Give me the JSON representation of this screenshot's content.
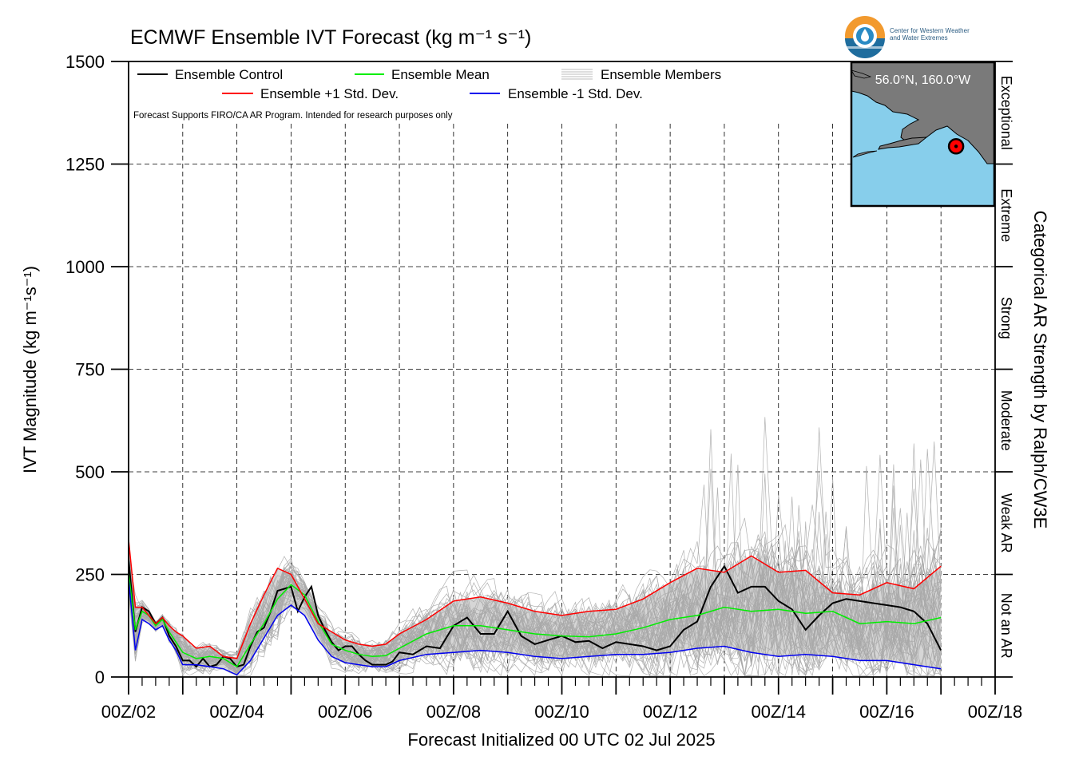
{
  "chart_data": {
    "type": "line",
    "title": "ECMWF Ensemble IVT Forecast (kg m⁻¹ s⁻¹)",
    "xlabel": "Forecast Initialized 00 UTC 02 Jul 2025",
    "ylabel": "IVT Magnitude (kg m⁻¹s⁻¹)",
    "right_label": "Categorical AR Strength by Ralph/CW3E",
    "ylim": [
      0,
      1500
    ],
    "xlim_days": [
      0,
      16
    ],
    "yticks": [
      0,
      250,
      500,
      750,
      1000,
      1250,
      1500
    ],
    "xtick_labels": [
      "00Z/02",
      "00Z/04",
      "00Z/06",
      "00Z/08",
      "00Z/10",
      "00Z/12",
      "00Z/14",
      "00Z/16",
      "00Z/18"
    ],
    "categories": [
      {
        "label": "Not an AR",
        "from": 0,
        "to": 250
      },
      {
        "label": "Weak AR",
        "from": 250,
        "to": 500
      },
      {
        "label": "Moderate",
        "from": 500,
        "to": 750
      },
      {
        "label": "Strong",
        "from": 750,
        "to": 1000
      },
      {
        "label": "Extreme",
        "from": 1000,
        "to": 1250
      },
      {
        "label": "Exceptional",
        "from": 1250,
        "to": 1500
      }
    ],
    "legend": {
      "control": "Ensemble Control",
      "mean": "Ensemble Mean",
      "members": "Ensemble Members",
      "plus_sd": "Ensemble +1 Std. Dev.",
      "minus_sd": "Ensemble -1 Std. Dev.",
      "note": "Forecast Supports FIRO/CA AR Program. Intended for research purposes only"
    },
    "grid": true,
    "legend_position": "top-left",
    "inset": {
      "label": "56.0°N, 160.0°W",
      "lat": 56.0,
      "lon": -160.0
    },
    "series": [
      {
        "name": "Ensemble Control",
        "color": "#000000",
        "x": [
          0,
          0.125,
          0.25,
          0.375,
          0.5,
          0.625,
          0.75,
          0.875,
          1,
          1.125,
          1.25,
          1.375,
          1.5,
          1.625,
          1.75,
          1.875,
          2,
          2.125,
          2.25,
          2.375,
          2.5,
          2.625,
          2.75,
          2.875,
          3,
          3.125,
          3.25,
          3.375,
          3.5,
          3.625,
          3.75,
          3.875,
          4,
          4.125,
          4.25,
          4.375,
          4.5,
          4.625,
          4.75,
          4.875,
          5,
          5.25,
          5.5,
          5.75,
          6,
          6.25,
          6.5,
          6.75,
          7,
          7.25,
          7.5,
          7.75,
          8,
          8.25,
          8.5,
          8.75,
          9,
          9.25,
          9.5,
          9.75,
          10,
          10.25,
          10.5,
          10.75,
          11,
          11.25,
          11.5,
          11.75,
          12,
          12.25,
          12.5,
          12.75,
          13,
          13.25,
          13.5,
          13.75,
          14,
          14.25,
          14.5,
          14.75,
          15
        ],
        "values": [
          285,
          110,
          170,
          160,
          130,
          145,
          100,
          75,
          40,
          40,
          25,
          45,
          25,
          30,
          50,
          45,
          25,
          30,
          75,
          110,
          120,
          160,
          210,
          215,
          220,
          160,
          195,
          220,
          150,
          115,
          85,
          65,
          75,
          75,
          55,
          40,
          30,
          30,
          30,
          38,
          60,
          55,
          75,
          70,
          125,
          145,
          105,
          105,
          160,
          100,
          80,
          90,
          100,
          85,
          88,
          70,
          85,
          80,
          75,
          65,
          75,
          115,
          135,
          220,
          270,
          205,
          220,
          220,
          185,
          165,
          115,
          150,
          180,
          190,
          185,
          180,
          175,
          170,
          160,
          130,
          65
        ]
      },
      {
        "name": "Ensemble Mean",
        "color": "#00ee00",
        "x": [
          0,
          0.125,
          0.25,
          0.375,
          0.5,
          0.625,
          0.75,
          0.875,
          1,
          1.25,
          1.5,
          1.75,
          2,
          2.25,
          2.5,
          2.75,
          3,
          3.25,
          3.5,
          3.75,
          4,
          4.25,
          4.5,
          4.75,
          5,
          5.5,
          6,
          6.5,
          7,
          7.5,
          8,
          8.5,
          9,
          9.5,
          10,
          10.5,
          11,
          11.5,
          12,
          12.5,
          13,
          13.5,
          14,
          14.5,
          15
        ],
        "values": [
          255,
          115,
          160,
          150,
          125,
          140,
          110,
          85,
          60,
          45,
          50,
          45,
          25,
          80,
          130,
          190,
          225,
          200,
          135,
          80,
          65,
          55,
          50,
          52,
          70,
          105,
          125,
          125,
          115,
          105,
          100,
          98,
          105,
          120,
          140,
          150,
          170,
          160,
          165,
          155,
          160,
          130,
          135,
          130,
          145
        ]
      },
      {
        "name": "Ensemble +1 Std. Dev.",
        "color": "#ff0000",
        "x": [
          0,
          0.125,
          0.25,
          0.375,
          0.5,
          0.625,
          0.75,
          0.875,
          1,
          1.25,
          1.5,
          1.75,
          2,
          2.25,
          2.5,
          2.75,
          3,
          3.25,
          3.5,
          3.75,
          4,
          4.25,
          4.5,
          4.75,
          5,
          5.5,
          6,
          6.5,
          7,
          7.5,
          8,
          8.5,
          9,
          9.5,
          10,
          10.5,
          11,
          11.5,
          12,
          12.5,
          13,
          13.5,
          14,
          14.5,
          15
        ],
        "values": [
          335,
          170,
          170,
          150,
          130,
          145,
          125,
          110,
          100,
          70,
          75,
          50,
          45,
          130,
          200,
          265,
          250,
          190,
          130,
          110,
          90,
          80,
          75,
          80,
          105,
          140,
          185,
          195,
          180,
          160,
          150,
          160,
          165,
          190,
          230,
          265,
          255,
          295,
          255,
          260,
          205,
          200,
          230,
          215,
          270
        ]
      },
      {
        "name": "Ensemble -1 Std. Dev.",
        "color": "#0000ee",
        "x": [
          0,
          0.125,
          0.25,
          0.375,
          0.5,
          0.625,
          0.75,
          0.875,
          1,
          1.25,
          1.5,
          1.75,
          2,
          2.25,
          2.5,
          2.75,
          3,
          3.25,
          3.5,
          3.75,
          4,
          4.25,
          4.5,
          4.75,
          5,
          5.5,
          6,
          6.5,
          7,
          7.5,
          8,
          8.5,
          9,
          9.5,
          10,
          10.5,
          11,
          11.5,
          12,
          12.5,
          13,
          13.5,
          14,
          14.5,
          15
        ],
        "values": [
          240,
          65,
          140,
          130,
          115,
          125,
          90,
          65,
          30,
          30,
          25,
          20,
          5,
          40,
          95,
          150,
          175,
          150,
          90,
          50,
          35,
          30,
          25,
          25,
          40,
          55,
          60,
          65,
          60,
          50,
          45,
          50,
          55,
          55,
          60,
          70,
          75,
          60,
          50,
          55,
          50,
          40,
          40,
          30,
          20
        ]
      }
    ]
  }
}
